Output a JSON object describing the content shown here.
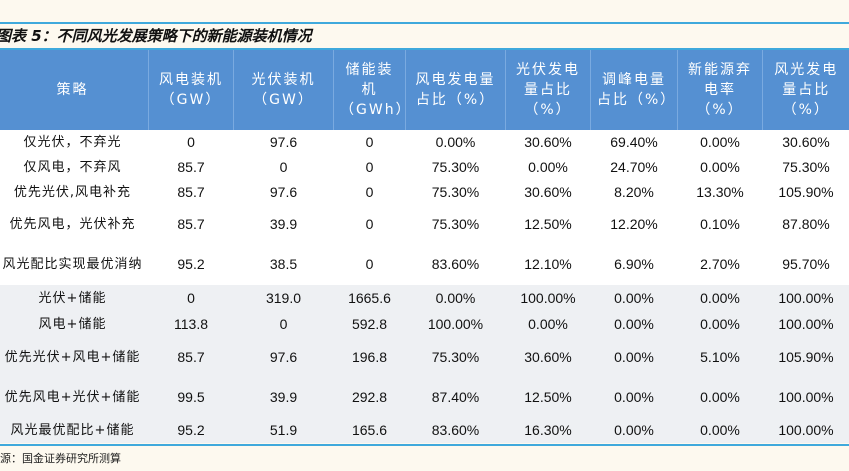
{
  "title": "图表 5：不同风光发展策略下的新能源装机情况",
  "headers": [
    "策略",
    "风电装机（GW）",
    "光伏装机（GW）",
    "储能装机（GWh）",
    "风电发电量占比（%）",
    "光伏发电量占比（%）",
    "调峰电量占比（%）",
    "新能源弃电率（%）",
    "风光发电量占比（%）"
  ],
  "rows": [
    [
      "仅光伏，不弃光",
      "0",
      "97.6",
      "0",
      "0.00%",
      "30.60%",
      "69.40%",
      "0.00%",
      "30.60%"
    ],
    [
      "仅风电，不弃风",
      "85.7",
      "0",
      "0",
      "75.30%",
      "0.00%",
      "24.70%",
      "0.00%",
      "75.30%"
    ],
    [
      "优先光伏,风电补充",
      "85.7",
      "97.6",
      "0",
      "75.30%",
      "30.60%",
      "8.20%",
      "13.30%",
      "105.90%"
    ],
    [
      "优先风电，光伏补充",
      "85.7",
      "39.9",
      "0",
      "75.30%",
      "12.50%",
      "12.20%",
      "0.10%",
      "87.80%"
    ],
    [
      "风光配比实现最优消纳",
      "95.2",
      "38.5",
      "0",
      "83.60%",
      "12.10%",
      "6.90%",
      "2.70%",
      "95.70%"
    ],
    [
      "光伏+储能",
      "0",
      "319.0",
      "1665.6",
      "0.00%",
      "100.00%",
      "0.00%",
      "0.00%",
      "100.00%"
    ],
    [
      "风电+储能",
      "113.8",
      "0",
      "592.8",
      "100.00%",
      "0.00%",
      "0.00%",
      "0.00%",
      "100.00%"
    ],
    [
      "优先光伏+风电+储能",
      "85.7",
      "97.6",
      "196.8",
      "75.30%",
      "30.60%",
      "0.00%",
      "5.10%",
      "105.90%"
    ],
    [
      "优先风电+光伏+储能",
      "99.5",
      "39.9",
      "292.8",
      "87.40%",
      "12.50%",
      "0.00%",
      "0.00%",
      "100.00%"
    ],
    [
      "风光最优配比+储能",
      "95.2",
      "51.9",
      "165.6",
      "83.60%",
      "16.30%",
      "0.00%",
      "0.00%",
      "100.00%"
    ]
  ],
  "source": "源：国金证券研究所测算"
}
